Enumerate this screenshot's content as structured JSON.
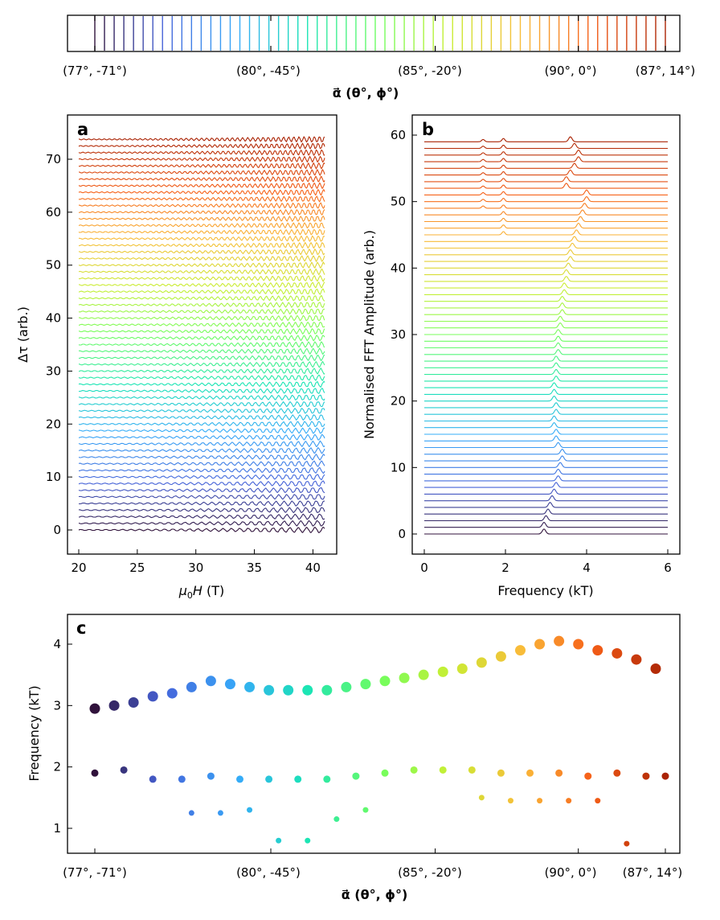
{
  "colorbar": {
    "tick_labels": [
      "(77°, -71°)",
      "(80°, -45°)",
      "(85°, -20°)",
      "(90°, 0°)",
      "(87°, 14°)"
    ],
    "label": "α⃗ (θ°, ϕ°)",
    "n_lines": 60
  },
  "panel_a": {
    "tag": "a",
    "xlabel": "μ0H (T)",
    "ylabel": "Δτ (arb.)",
    "xticks": [
      "20",
      "25",
      "30",
      "35",
      "40"
    ],
    "yticks": [
      "0",
      "10",
      "20",
      "30",
      "40",
      "50",
      "60",
      "70"
    ]
  },
  "panel_b": {
    "tag": "b",
    "xlabel": "Frequency (kT)",
    "ylabel": "Normalised FFT Amplitude (arb.)",
    "xticks": [
      "0",
      "2",
      "4",
      "6"
    ],
    "yticks": [
      "0",
      "10",
      "20",
      "30",
      "40",
      "50",
      "60"
    ]
  },
  "panel_c": {
    "tag": "c",
    "xlabel": "α⃗ (θ°, ϕ°)",
    "ylabel": "Frequency (kT)",
    "xtick_labels": [
      "(77°, -71°)",
      "(80°, -45°)",
      "(85°, -20°)",
      "(90°, 0°)",
      "(87°, 14°)"
    ],
    "yticks": [
      "1",
      "2",
      "3",
      "4"
    ]
  },
  "chart_data": [
    {
      "id": "a",
      "type": "line",
      "title": "",
      "xlabel": "μ0H (T)",
      "ylabel": "Δτ (arb.)",
      "xlim": [
        19,
        42
      ],
      "ylim": [
        -4,
        78
      ],
      "n_series": 60,
      "field_range": [
        20,
        41
      ],
      "offset_step": 1.25,
      "description": "Stacked quantum-oscillation torque traces, one per field angle, each offset vertically by 1.25 and colored by angle index"
    },
    {
      "id": "b",
      "type": "line",
      "title": "",
      "xlabel": "Frequency (kT)",
      "ylabel": "Normalised FFT Amplitude (arb.)",
      "xlim": [
        -0.3,
        6.3
      ],
      "ylim": [
        -3,
        63
      ],
      "n_series": 60,
      "offset_step": 1.0,
      "peak_frequency_kT": [
        2.95,
        2.95,
        3.0,
        3.05,
        3.1,
        3.15,
        3.2,
        3.25,
        3.3,
        3.3,
        3.35,
        3.4,
        3.4,
        3.3,
        3.25,
        3.25,
        3.2,
        3.2,
        3.25,
        3.25,
        3.2,
        3.2,
        3.2,
        3.25,
        3.25,
        3.25,
        3.25,
        3.3,
        3.3,
        3.3,
        3.3,
        3.35,
        3.35,
        3.4,
        3.4,
        3.4,
        3.45,
        3.45,
        3.5,
        3.5,
        3.55,
        3.6,
        3.6,
        3.65,
        3.7,
        3.75,
        3.8,
        3.85,
        3.9,
        3.95,
        4.0,
        4.0,
        3.5,
        3.5,
        3.6,
        3.7,
        3.8,
        3.8,
        3.7,
        3.6
      ]
    },
    {
      "id": "c",
      "type": "scatter",
      "title": "",
      "xlabel": "α⃗ (θ°, ϕ°)",
      "ylabel": "Frequency (kT)",
      "x_index_range": [
        0,
        59
      ],
      "ylim": [
        0.6,
        4.5
      ],
      "main_branch": {
        "index": [
          0,
          2,
          4,
          6,
          8,
          10,
          12,
          14,
          16,
          18,
          20,
          22,
          24,
          26,
          28,
          30,
          32,
          34,
          36,
          38,
          40,
          42,
          44,
          46,
          48,
          50,
          52,
          54,
          56,
          58
        ],
        "frequency_kT": [
          2.95,
          3.0,
          3.05,
          3.15,
          3.2,
          3.3,
          3.4,
          3.35,
          3.3,
          3.25,
          3.25,
          3.25,
          3.25,
          3.3,
          3.35,
          3.4,
          3.45,
          3.5,
          3.55,
          3.6,
          3.7,
          3.8,
          3.9,
          4.0,
          4.05,
          4.0,
          3.9,
          3.85,
          3.75,
          3.6
        ]
      },
      "lower_branch": {
        "index": [
          0,
          3,
          6,
          9,
          12,
          15,
          18,
          21,
          24,
          27,
          30,
          33,
          36,
          39,
          42,
          45,
          48,
          51,
          54,
          57,
          59
        ],
        "frequency_kT": [
          1.9,
          1.95,
          1.8,
          1.8,
          1.85,
          1.8,
          1.8,
          1.8,
          1.8,
          1.85,
          1.9,
          1.95,
          1.95,
          1.95,
          1.9,
          1.9,
          1.9,
          1.85,
          1.9,
          1.85,
          1.85
        ]
      },
      "low_branch": {
        "index": [
          10,
          13,
          16,
          19,
          22,
          25,
          28,
          40,
          43,
          46,
          49,
          52,
          55
        ],
        "frequency_kT": [
          1.25,
          1.25,
          1.3,
          0.8,
          0.8,
          1.15,
          1.3,
          1.5,
          1.45,
          1.45,
          1.45,
          1.45,
          0.75
        ]
      }
    }
  ]
}
